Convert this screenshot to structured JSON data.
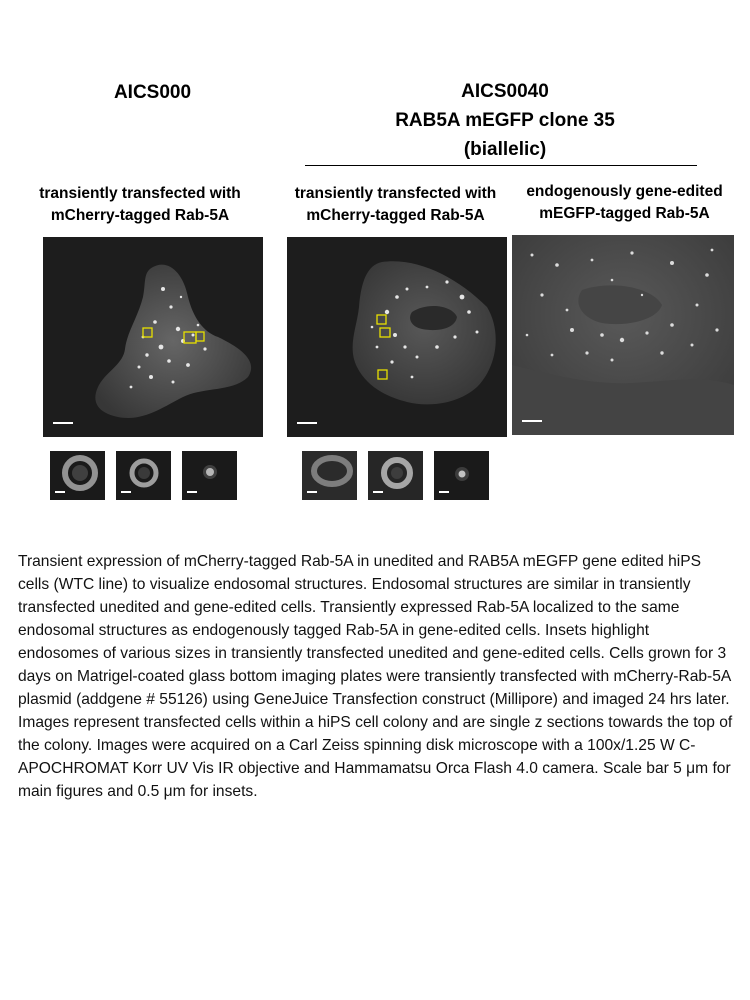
{
  "left_group": {
    "title": "AICS000",
    "panel_label_line1": "transiently transfected with",
    "panel_label_line2": "mCherry-tagged Rab-5A"
  },
  "right_group": {
    "title_line1": "AICS0040",
    "title_line2": "RAB5A mEGFP clone 35",
    "title_line3": "(biallelic)",
    "panel1_label_line1": "transiently transfected with",
    "panel1_label_line2": "mCherry-tagged Rab-5A",
    "panel2_label_line1": "endogenously gene-edited",
    "panel2_label_line2": "mEGFP-tagged Rab-5A"
  },
  "colors": {
    "inset_box": "#e8e000",
    "scale_bar": "#ffffff",
    "image_background": "#1d1d1d"
  },
  "caption": "Transient expression of mCherry-tagged Rab-5A in unedited and RAB5A mEGFP gene edited hiPS cells (WTC line) to visualize endosomal structures. Endosomal structures are similar in transiently transfected unedited and gene-edited cells. Transiently expressed Rab-5A localized to the same endosomal structures as endogenously tagged Rab-5A in gene-edited cells. Insets highlight endosomes of various sizes in transiently transfected unedited and gene-edited cells. Cells grown for 3 days on Matrigel-coated glass bottom imaging plates were transiently transfected with mCherry-Rab-5A plasmid (addgene # 55126) using GeneJuice Transfection construct (Millipore) and imaged 24 hrs later. Images represent transfected cells within a hiPS cell colony and are single z sections towards the top of the colony. Images were acquired on a Carl Zeiss spinning disk microscope with a 100x/1.25 W C-APOCHROMAT Korr UV Vis IR objective and Hammamatsu Orca Flash 4.0 camera. Scale bar 5 μm for main figures and 0.5 μm for insets."
}
